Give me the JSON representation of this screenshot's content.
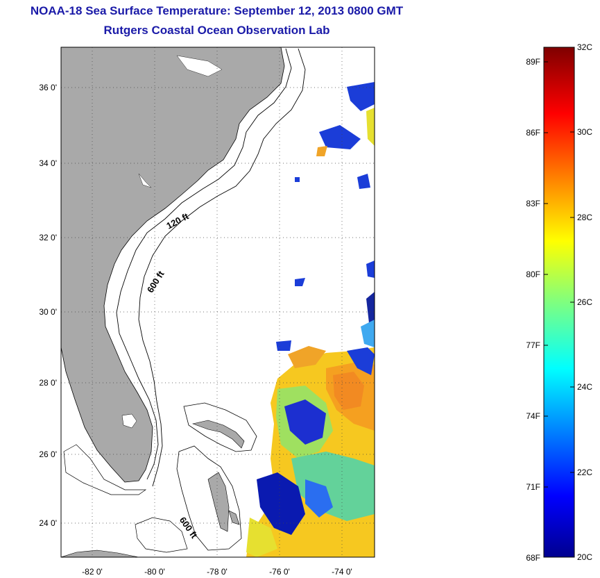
{
  "title": "NOAA-18 Sea Surface Temperature:  September 12, 2013 0800 GMT",
  "subtitle": "Rutgers Coastal Ocean Observation Lab",
  "map": {
    "lat_range": [
      23,
      37
    ],
    "lon_range": [
      -83,
      -73
    ],
    "lat_ticks": [
      "36 0'",
      "34 0'",
      "32 0'",
      "30 0'",
      "28 0'",
      "26 0'",
      "24 0'"
    ],
    "lon_ticks": [
      "-82 0'",
      "-80 0'",
      "-78 0'",
      "-76 0'",
      "-74 0'"
    ],
    "contour_labels": [
      "120 ft",
      "600 ft",
      "600 ft"
    ],
    "land_color": "#a9a9a9",
    "grid": "dotted"
  },
  "colorbar": {
    "f_labels": [
      "89F",
      "86F",
      "83F",
      "80F",
      "77F",
      "74F",
      "71F",
      "68F"
    ],
    "c_labels": [
      "32C",
      "30C",
      "28C",
      "26C",
      "24C",
      "22C",
      "20C"
    ],
    "range_c": [
      20,
      32
    ],
    "colormap": "jet"
  }
}
